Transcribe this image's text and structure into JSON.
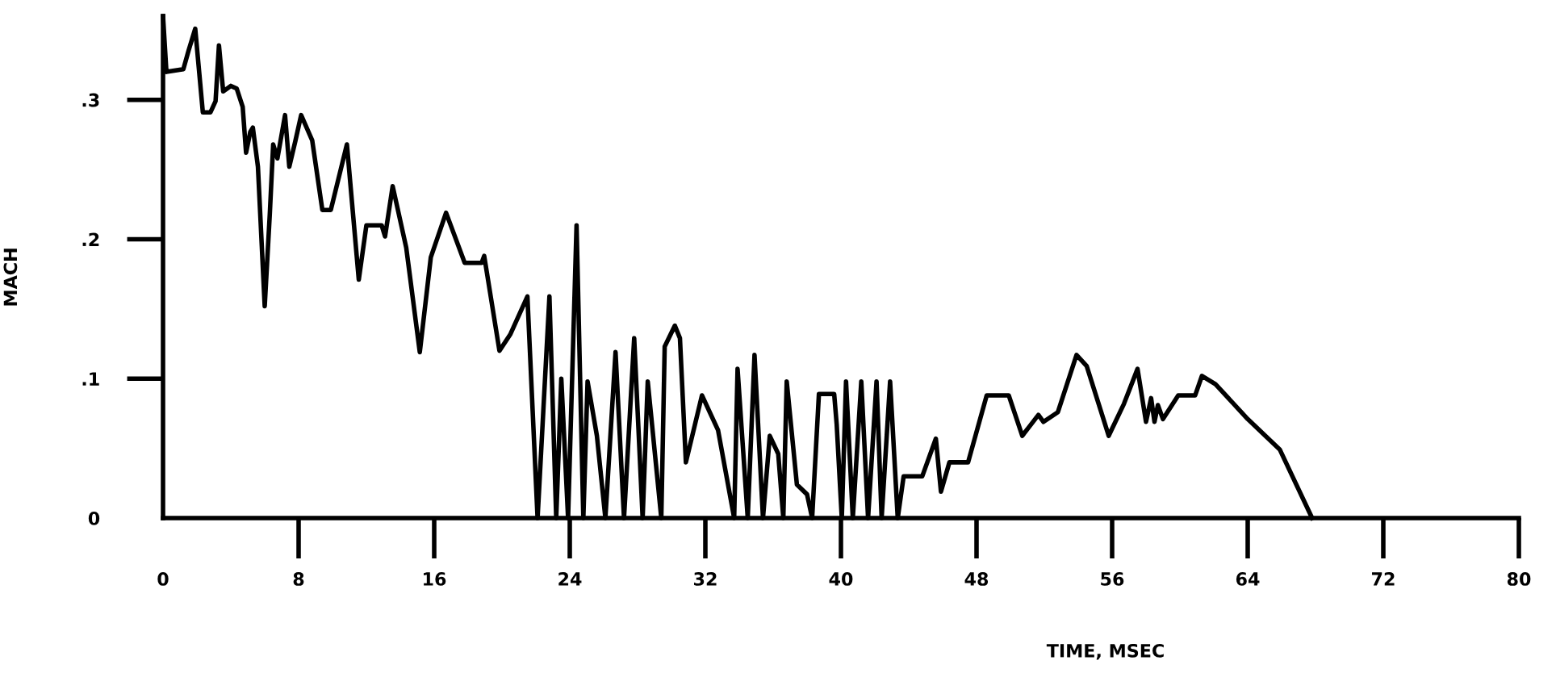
{
  "chart_data": {
    "type": "line",
    "xlabel": "TIME, MSEC",
    "ylabel": "MACH",
    "color": "#000000",
    "marker": "none",
    "line_style": "solid",
    "grid": false,
    "x": [
      0,
      0.2,
      1.2,
      1.5,
      1.9,
      2.35,
      2.8,
      3.1,
      3.3,
      3.55,
      4.0,
      4.35,
      4.7,
      4.9,
      5.15,
      5.3,
      5.6,
      6.0,
      6.3,
      6.5,
      6.75,
      7.2,
      7.45,
      7.8,
      8.15,
      8.8,
      9.4,
      9.9,
      10.85,
      11.55,
      12.0,
      12.9,
      13.1,
      13.55,
      14.35,
      15.15,
      15.8,
      16.7,
      17.8,
      18.8,
      18.95,
      19.85,
      20.5,
      21.5,
      22.1,
      22.8,
      23.2,
      23.5,
      23.9,
      24.4,
      24.8,
      25.05,
      25.6,
      26.1,
      26.7,
      27.2,
      27.8,
      28.3,
      28.6,
      29.4,
      29.6,
      30.2,
      30.5,
      30.85,
      31.8,
      32.75,
      33.7,
      33.9,
      34.5,
      34.9,
      35.4,
      35.8,
      36.3,
      36.6,
      36.8,
      37.4,
      38.0,
      38.3,
      38.7,
      39.6,
      39.75,
      40.05,
      40.3,
      40.7,
      41.2,
      41.6,
      42.1,
      42.4,
      42.9,
      43.35,
      43.7,
      44.8,
      45.6,
      45.9,
      46.4,
      47.5,
      48.6,
      49.9,
      50.7,
      51.65,
      51.95,
      52.8,
      53.9,
      54.5,
      55.8,
      56.7,
      57.5,
      58.0,
      58.3,
      58.5,
      58.7,
      59.0,
      59.9,
      60.9,
      61.3,
      62.1,
      64.0,
      65.9,
      67.8
    ],
    "values": [
      0.36,
      0.32,
      0.322,
      0.335,
      0.351,
      0.291,
      0.291,
      0.299,
      0.339,
      0.306,
      0.31,
      0.308,
      0.295,
      0.262,
      0.277,
      0.28,
      0.252,
      0.152,
      0.218,
      0.268,
      0.258,
      0.289,
      0.252,
      0.27,
      0.289,
      0.271,
      0.221,
      0.221,
      0.268,
      0.171,
      0.21,
      0.21,
      0.202,
      0.238,
      0.194,
      0.119,
      0.187,
      0.219,
      0.183,
      0.183,
      0.188,
      0.12,
      0.132,
      0.159,
      0,
      0.159,
      0,
      0.1,
      0,
      0.21,
      0,
      0.098,
      0.059,
      0,
      0.119,
      0,
      0.129,
      0,
      0.098,
      0,
      0.123,
      0.138,
      0.129,
      0.04,
      0.088,
      0.063,
      0,
      0.107,
      0,
      0.117,
      0,
      0.059,
      0.046,
      0,
      0.098,
      0.024,
      0.017,
      0,
      0.089,
      0.089,
      0.067,
      0,
      0.098,
      0,
      0.098,
      0,
      0.098,
      0,
      0.098,
      0,
      0.03,
      0.03,
      0.057,
      0.019,
      0.04,
      0.04,
      0.088,
      0.088,
      0.059,
      0.074,
      0.069,
      0.076,
      0.117,
      0.109,
      0.059,
      0.082,
      0.107,
      0.069,
      0.086,
      0.069,
      0.081,
      0.071,
      0.088,
      0.088,
      0.102,
      0.096,
      0.071,
      0.049,
      0
    ],
    "xlim": [
      0,
      80
    ],
    "xticks": [
      0,
      8,
      16,
      24,
      32,
      40,
      48,
      56,
      64,
      72,
      80
    ],
    "ylim": [
      0,
      0.36
    ],
    "yticks": [
      0,
      {
        "value": 0.1,
        "label": ".1"
      },
      {
        "value": 0.2,
        "label": ".2"
      },
      {
        "value": 0.3,
        "label": ".3"
      }
    ]
  }
}
